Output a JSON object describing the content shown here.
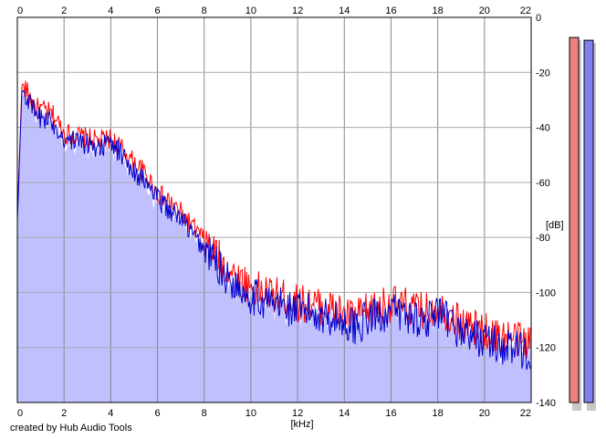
{
  "chart_data": {
    "type": "area",
    "title": "",
    "xlabel": "[kHz]",
    "ylabel": "[dB]",
    "xlim": [
      0,
      22
    ],
    "ylim": [
      -140,
      0
    ],
    "x_ticks": [
      "0",
      "2",
      "4",
      "6",
      "8",
      "10",
      "12",
      "14",
      "16",
      "18",
      "20",
      "22"
    ],
    "y_ticks": [
      "0",
      "-20",
      "-40",
      "-60",
      "-80",
      "-100",
      "-120",
      "-140"
    ],
    "grid": true,
    "series": [
      {
        "color": "#ff0000",
        "x": [
          0,
          0.2,
          0.4,
          0.8,
          1.2,
          1.6,
          2.0,
          2.5,
          3.0,
          3.5,
          4.0,
          4.5,
          5.0,
          5.5,
          6.0,
          6.5,
          7.0,
          7.5,
          8.0,
          8.5,
          9.0,
          9.5,
          10.0,
          10.5,
          11.0,
          11.5,
          12.0,
          12.5,
          13.0,
          13.5,
          14.0,
          14.5,
          15.0,
          15.5,
          16.0,
          16.5,
          17.0,
          17.5,
          18.0,
          18.5,
          19.0,
          19.5,
          20.0,
          20.5,
          21.0,
          21.5,
          22.0
        ],
        "values": [
          -72,
          -24,
          -27,
          -33,
          -34,
          -36,
          -42,
          -43,
          -44,
          -45,
          -44,
          -48,
          -53,
          -57,
          -64,
          -67,
          -71,
          -76,
          -81,
          -86,
          -92,
          -95,
          -98,
          -100,
          -101,
          -102,
          -104,
          -104,
          -105,
          -106,
          -108,
          -109,
          -107,
          -105,
          -104,
          -105,
          -106,
          -107,
          -105,
          -108,
          -111,
          -113,
          -114,
          -116,
          -116,
          -117,
          -118
        ]
      },
      {
        "color": "#0000cc",
        "x": [
          0,
          0.2,
          0.4,
          0.8,
          1.2,
          1.6,
          2.0,
          2.5,
          3.0,
          3.5,
          4.0,
          4.5,
          5.0,
          5.5,
          6.0,
          6.5,
          7.0,
          7.5,
          8.0,
          8.5,
          9.0,
          9.5,
          10.0,
          10.5,
          11.0,
          11.5,
          12.0,
          12.5,
          13.0,
          13.5,
          14.0,
          14.5,
          15.0,
          15.5,
          16.0,
          16.5,
          17.0,
          17.5,
          18.0,
          18.5,
          19.0,
          19.5,
          20.0,
          20.5,
          21.0,
          21.5,
          22.0
        ],
        "values": [
          -74,
          -26,
          -29,
          -36,
          -37,
          -39,
          -44,
          -45,
          -46,
          -47,
          -46,
          -50,
          -56,
          -60,
          -66,
          -70,
          -73,
          -79,
          -84,
          -89,
          -95,
          -98,
          -101,
          -103,
          -104,
          -105,
          -107,
          -107,
          -108,
          -109,
          -111,
          -112,
          -110,
          -108,
          -107,
          -108,
          -109,
          -110,
          -108,
          -111,
          -114,
          -116,
          -117,
          -119,
          -120,
          -121,
          -122
        ]
      }
    ],
    "fill_color": "#c0c0ff",
    "meters": [
      {
        "color": "#f08080",
        "value_db": -7
      },
      {
        "color": "#8080f0",
        "value_db": -8
      }
    ]
  },
  "footer": {
    "credit": "created by Hub Audio Tools"
  }
}
